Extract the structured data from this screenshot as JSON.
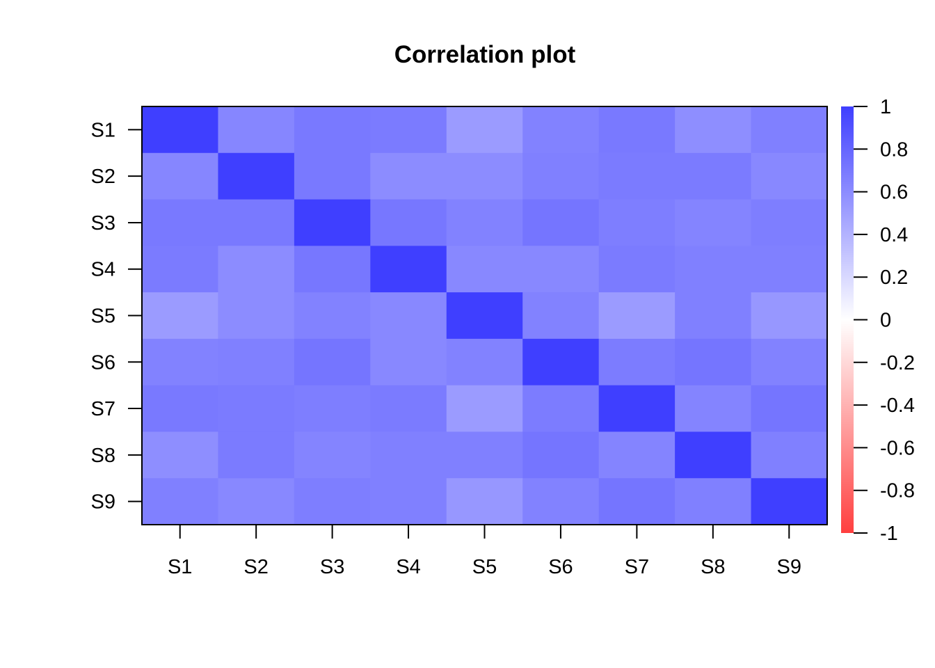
{
  "chart_data": {
    "type": "heatmap",
    "title": "Correlation plot",
    "xlabel": "",
    "ylabel": "",
    "x_categories": [
      "S1",
      "S2",
      "S3",
      "S4",
      "S5",
      "S6",
      "S7",
      "S8",
      "S9"
    ],
    "y_categories": [
      "S1",
      "S2",
      "S3",
      "S4",
      "S5",
      "S6",
      "S7",
      "S8",
      "S9"
    ],
    "values": [
      [
        1.0,
        0.63,
        0.7,
        0.69,
        0.52,
        0.65,
        0.7,
        0.59,
        0.66
      ],
      [
        0.63,
        1.0,
        0.7,
        0.6,
        0.6,
        0.66,
        0.69,
        0.69,
        0.62
      ],
      [
        0.7,
        0.7,
        1.0,
        0.71,
        0.65,
        0.72,
        0.67,
        0.64,
        0.67
      ],
      [
        0.69,
        0.6,
        0.71,
        1.0,
        0.62,
        0.62,
        0.69,
        0.66,
        0.66
      ],
      [
        0.52,
        0.6,
        0.65,
        0.62,
        1.0,
        0.65,
        0.52,
        0.66,
        0.54
      ],
      [
        0.65,
        0.66,
        0.72,
        0.62,
        0.65,
        1.0,
        0.68,
        0.72,
        0.65
      ],
      [
        0.7,
        0.69,
        0.67,
        0.69,
        0.52,
        0.68,
        1.0,
        0.64,
        0.72
      ],
      [
        0.59,
        0.69,
        0.64,
        0.66,
        0.66,
        0.72,
        0.64,
        1.0,
        0.66
      ],
      [
        0.66,
        0.62,
        0.67,
        0.66,
        0.54,
        0.65,
        0.72,
        0.66,
        1.0
      ]
    ],
    "zlim": [
      -1,
      1
    ],
    "legend": {
      "position": "right",
      "ticks": [
        "1",
        "0.8",
        "0.6",
        "0.4",
        "0.2",
        "0",
        "-0.2",
        "-0.4",
        "-0.6",
        "-0.8",
        "-1"
      ],
      "tick_values": [
        1,
        0.8,
        0.6,
        0.4,
        0.2,
        0,
        -0.2,
        -0.4,
        -0.6,
        -0.8,
        -1
      ]
    },
    "colors": {
      "high": "#3f3fff",
      "mid": "#ffffff",
      "low": "#ff3f3f"
    },
    "grid": false
  }
}
